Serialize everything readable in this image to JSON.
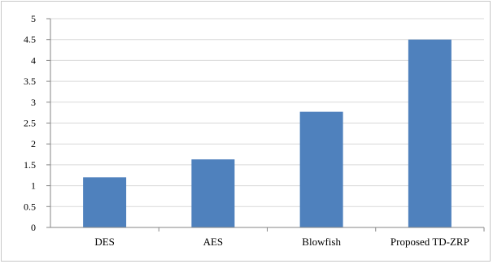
{
  "chart_data": {
    "type": "bar",
    "title": "",
    "xlabel": "",
    "ylabel": "",
    "categories": [
      "DES",
      "AES",
      "Blowfish",
      "Proposed TD-ZRP"
    ],
    "values": [
      1.2,
      1.63,
      2.77,
      4.5
    ],
    "ylim": [
      0,
      5
    ],
    "yticks": [
      0,
      0.5,
      1,
      1.5,
      2,
      2.5,
      3,
      3.5,
      4,
      4.5,
      5
    ],
    "ytick_labels": [
      "0",
      "0.5",
      "1",
      "1.5",
      "2",
      "2.5",
      "3",
      "3.5",
      "4",
      "4.5",
      "5"
    ],
    "grid": true,
    "legend": "none",
    "colors": {
      "bar": "#4f81bd",
      "grid": "#d9d9d9",
      "axis": "#868686"
    }
  }
}
